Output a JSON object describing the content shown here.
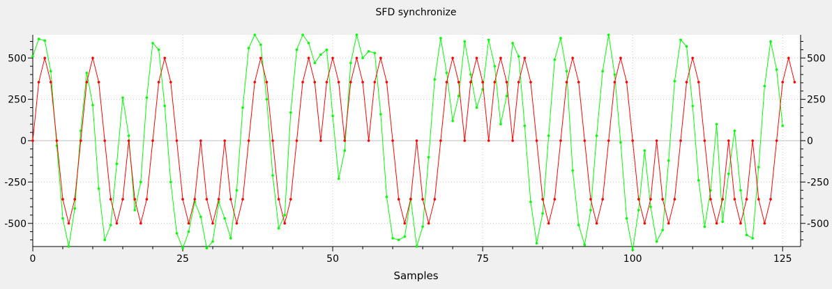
{
  "chart_data": {
    "type": "line",
    "title": "SFD synchronize",
    "xlabel": "Samples",
    "ylabel": "",
    "xlim": [
      0,
      128
    ],
    "ylim": [
      -640,
      640
    ],
    "xticks": [
      0,
      25,
      50,
      75,
      100,
      125
    ],
    "yticks": [
      -500,
      -250,
      0,
      250,
      500
    ],
    "grid": true,
    "series": [
      {
        "color": "#ff0000",
        "values": [
          0,
          354,
          500,
          354,
          0,
          -354,
          -500,
          -354,
          0,
          354,
          500,
          354,
          0,
          -354,
          -500,
          -354,
          0,
          -354,
          -500,
          -354,
          0,
          354,
          500,
          354,
          0,
          -354,
          -500,
          -354,
          0,
          -354,
          -500,
          -354,
          0,
          -354,
          -500,
          -354,
          0,
          354,
          500,
          354,
          0,
          -354,
          -500,
          -354,
          0,
          354,
          500,
          354,
          0,
          354,
          500,
          354,
          0,
          354,
          500,
          354,
          0,
          354,
          500,
          354,
          0,
          -354,
          -500,
          -354,
          0,
          -354,
          -500,
          -354,
          0,
          354,
          500,
          354,
          0,
          354,
          500,
          354,
          0,
          354,
          500,
          354,
          0,
          354,
          500,
          354,
          0,
          -354,
          -500,
          -354,
          0,
          354,
          500,
          354,
          0,
          -354,
          -500,
          -354,
          0,
          354,
          500,
          354,
          0,
          -354,
          -500,
          -354,
          0,
          -354,
          -500,
          -354,
          0,
          354,
          500,
          354,
          0,
          -354,
          -500,
          -354,
          0,
          -354,
          -500,
          -354,
          0,
          -354,
          -500,
          -354,
          0,
          354,
          500,
          354
        ]
      },
      {
        "color": "#00ff00",
        "values": [
          510,
          615,
          605,
          420,
          -30,
          -470,
          -640,
          -410,
          60,
          410,
          215,
          -290,
          -600,
          -510,
          -140,
          260,
          30,
          -420,
          -250,
          260,
          590,
          550,
          210,
          -250,
          -560,
          -650,
          -550,
          -370,
          -460,
          -650,
          -610,
          -370,
          -470,
          -590,
          -300,
          200,
          560,
          640,
          580,
          250,
          -210,
          -530,
          -450,
          170,
          550,
          640,
          590,
          470,
          520,
          550,
          150,
          -230,
          -60,
          470,
          640,
          500,
          540,
          530,
          160,
          -340,
          -590,
          -600,
          -580,
          -350,
          -640,
          -520,
          -100,
          370,
          620,
          410,
          120,
          270,
          600,
          400,
          200,
          310,
          610,
          450,
          100,
          270,
          590,
          510,
          90,
          -370,
          -620,
          -440,
          30,
          490,
          620,
          420,
          -180,
          -510,
          -630,
          -420,
          30,
          420,
          640,
          400,
          -10,
          -470,
          -660,
          -420,
          -60,
          -400,
          -610,
          -540,
          -120,
          360,
          610,
          570,
          210,
          -240,
          -520,
          -300,
          100,
          -490,
          -200,
          60,
          -300,
          -570,
          -590,
          -160,
          330,
          600,
          430,
          90
        ]
      }
    ]
  }
}
